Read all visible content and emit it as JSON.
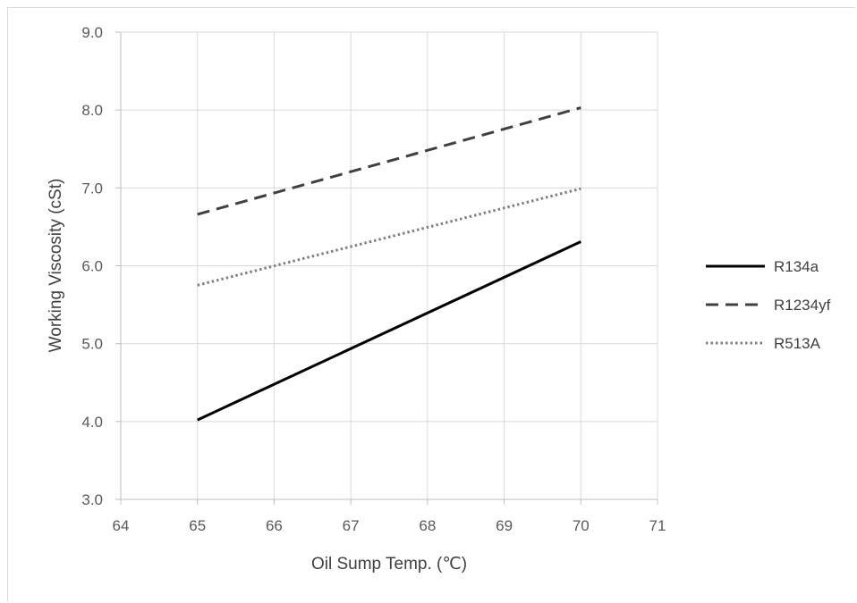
{
  "chart_data": {
    "type": "line",
    "title": "",
    "xlabel": "Oil Sump Temp. (℃)",
    "ylabel": "Working Viscosity (cSt)",
    "xlim": [
      64,
      71
    ],
    "ylim": [
      3.0,
      9.0
    ],
    "x_ticks": [
      "64",
      "65",
      "66",
      "67",
      "68",
      "69",
      "70",
      "71"
    ],
    "y_ticks": [
      "3.0",
      "4.0",
      "5.0",
      "6.0",
      "7.0",
      "8.0",
      "9.0"
    ],
    "grid": true,
    "legend_position": "right",
    "series": [
      {
        "name": "R134a",
        "x": [
          65,
          70
        ],
        "y": [
          4.02,
          6.31
        ],
        "color": "#000000",
        "style": "solid"
      },
      {
        "name": "R1234yf",
        "x": [
          65,
          70
        ],
        "y": [
          6.66,
          8.03
        ],
        "color": "#404040",
        "style": "dashed"
      },
      {
        "name": "R513A",
        "x": [
          65,
          70
        ],
        "y": [
          5.75,
          6.99
        ],
        "color": "#808080",
        "style": "dotted"
      }
    ]
  }
}
